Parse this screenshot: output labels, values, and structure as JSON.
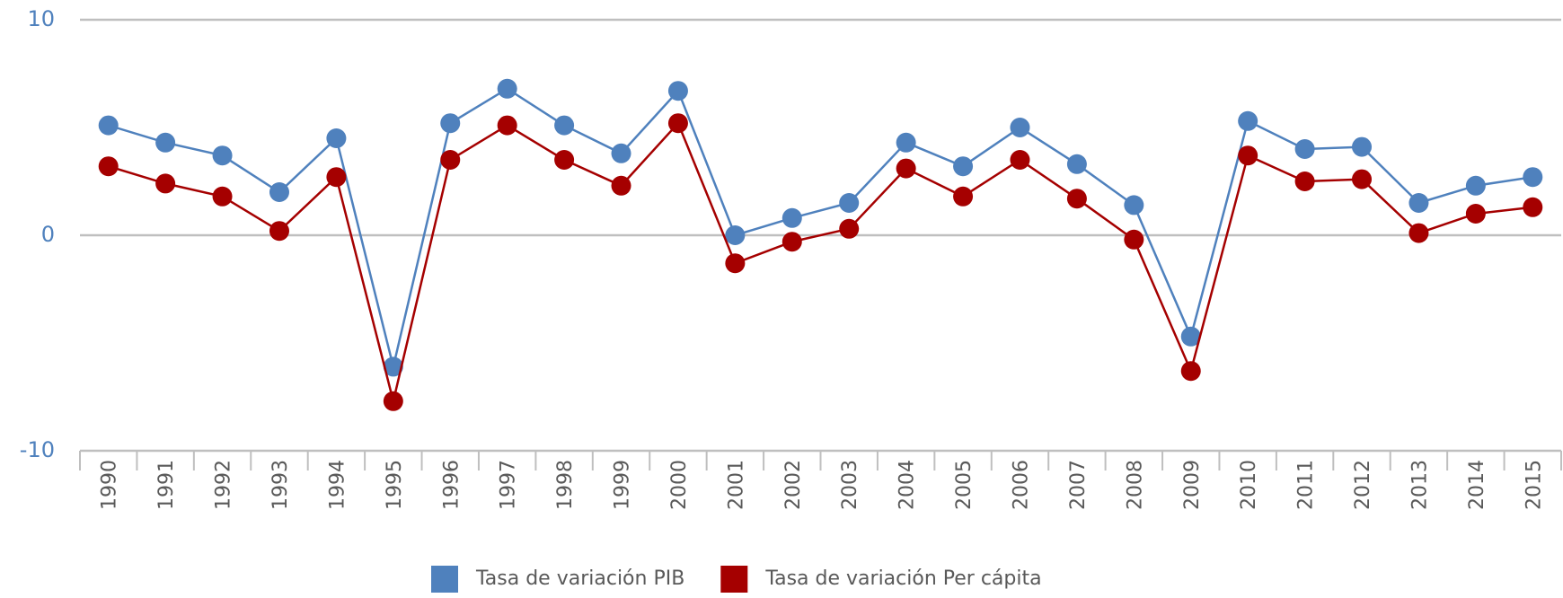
{
  "chart_data": {
    "type": "line",
    "categories": [
      "1990",
      "1991",
      "1992",
      "1993",
      "1994",
      "1995",
      "1996",
      "1997",
      "1998",
      "1999",
      "2000",
      "2001",
      "2002",
      "2003",
      "2004",
      "2005",
      "2006",
      "2007",
      "2008",
      "2009",
      "2010",
      "2011",
      "2012",
      "2013",
      "2014",
      "2015"
    ],
    "series": [
      {
        "name": "Tasa de variación PIB",
        "color": "#4f81bd",
        "values": [
          5.1,
          4.3,
          3.7,
          2.0,
          4.5,
          -6.1,
          5.2,
          6.8,
          5.1,
          3.8,
          6.7,
          0.0,
          0.8,
          1.5,
          4.3,
          3.2,
          5.0,
          3.3,
          1.4,
          -4.7,
          5.3,
          4.0,
          4.1,
          1.5,
          2.3,
          2.7
        ]
      },
      {
        "name": "Tasa de variación Per cápita",
        "color": "#a50000",
        "values": [
          3.2,
          2.4,
          1.8,
          0.2,
          2.7,
          -7.7,
          3.5,
          5.1,
          3.5,
          2.3,
          5.2,
          -1.3,
          -0.3,
          0.3,
          3.1,
          1.8,
          3.5,
          1.7,
          -0.2,
          -6.3,
          3.7,
          2.5,
          2.6,
          0.1,
          1.0,
          1.3
        ]
      }
    ],
    "ylim": [
      -10,
      10
    ],
    "yticks": [
      -10,
      0,
      10
    ],
    "grid": true,
    "legend": "bottom"
  }
}
